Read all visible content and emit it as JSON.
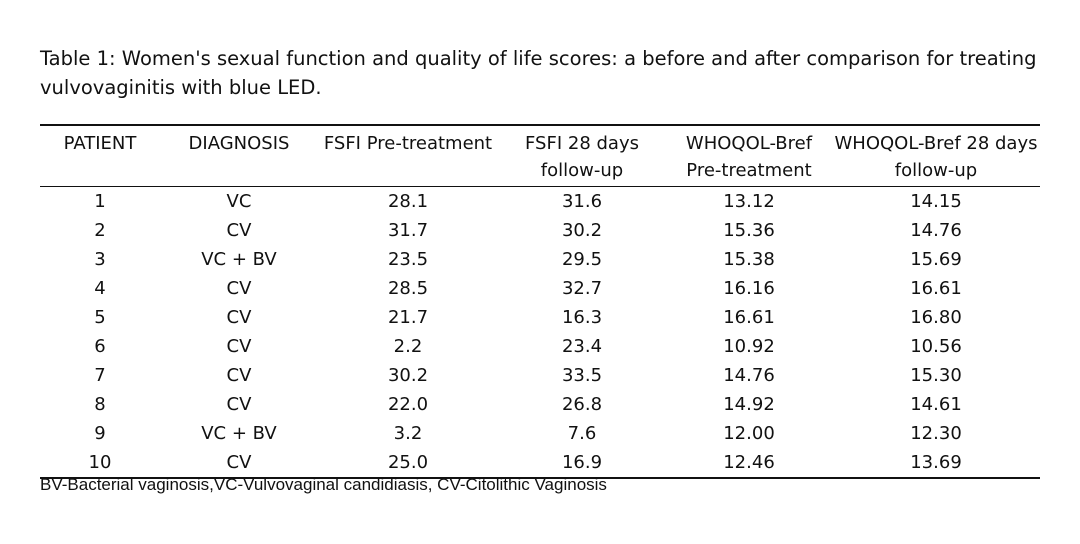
{
  "caption": "Table 1: Women's sexual function and quality of life scores: a before and after comparison for treating vulvovaginitis with blue LED.",
  "table": {
    "headers": [
      "PATIENT",
      "DIAGNOSIS",
      "FSFI Pre-treatment",
      "FSFI 28 days follow-up",
      "WHOQOL-Bref Pre-treatment",
      "WHOQOL-Bref 28 days follow-up"
    ],
    "rows": [
      [
        "1",
        "VC",
        "28.1",
        "31.6",
        "13.12",
        "14.15"
      ],
      [
        "2",
        "CV",
        "31.7",
        "30.2",
        "15.36",
        "14.76"
      ],
      [
        "3",
        "VC + BV",
        "23.5",
        "29.5",
        "15.38",
        "15.69"
      ],
      [
        "4",
        "CV",
        "28.5",
        "32.7",
        "16.16",
        "16.61"
      ],
      [
        "5",
        "CV",
        "21.7",
        "16.3",
        "16.61",
        "16.80"
      ],
      [
        "6",
        "CV",
        "2.2",
        "23.4",
        "10.92",
        "10.56"
      ],
      [
        "7",
        "CV",
        "30.2",
        "33.5",
        "14.76",
        "15.30"
      ],
      [
        "8",
        "CV",
        "22.0",
        "26.8",
        "14.92",
        "14.61"
      ],
      [
        "9",
        "VC + BV",
        "3.2",
        "7.6",
        "12.00",
        "12.30"
      ],
      [
        "10",
        "CV",
        "25.0",
        "16.9",
        "12.46",
        "13.69"
      ]
    ]
  },
  "footnote": "BV-Bacterial vaginosis,VC-Vulvovaginal candidiasis, CV-Citolithic Vaginosis"
}
